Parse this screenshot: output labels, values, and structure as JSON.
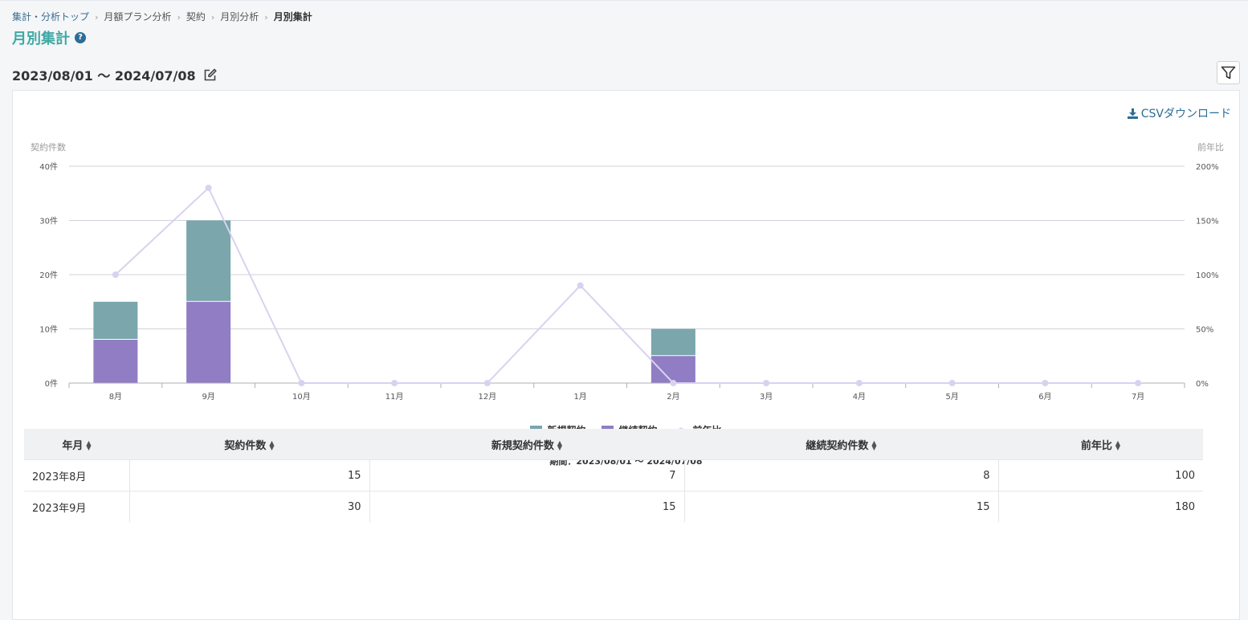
{
  "breadcrumb": {
    "items": [
      "集計・分析トップ",
      "月額プラン分析",
      "契約",
      "月別分析"
    ],
    "current": "月別集計"
  },
  "page_title": "月別集計",
  "help_icon_glyph": "?",
  "date_range": "2023/08/01 〜 2024/07/08",
  "csv_label": "CSVダウンロード",
  "colors": {
    "new_contract": "#7aa6ac",
    "renewal_contract": "#917dc4",
    "yoy_line": "#d8d2f0",
    "title_accent": "#3fa9a4",
    "link": "#2c6d96"
  },
  "chart_data": {
    "type": "bar",
    "stacked": true,
    "categories": [
      "8月",
      "9月",
      "10月",
      "11月",
      "12月",
      "1月",
      "2月",
      "3月",
      "4月",
      "5月",
      "6月",
      "7月"
    ],
    "series": [
      {
        "name": "継続契約",
        "values": [
          8,
          15,
          0,
          0,
          0,
          0,
          5,
          0,
          0,
          0,
          0,
          0
        ]
      },
      {
        "name": "新規契約",
        "values": [
          7,
          15,
          0,
          0,
          0,
          0,
          5,
          0,
          0,
          0,
          0,
          0
        ]
      }
    ],
    "line_series": {
      "name": "前年比",
      "type": "line",
      "axis": "right",
      "values": [
        100,
        180,
        0,
        0,
        0,
        90,
        0,
        0,
        0,
        0,
        0,
        0
      ]
    },
    "ylabel_left": "契約件数",
    "ylabel_right": "前年比",
    "ylim_left": [
      0,
      40
    ],
    "ylim_right": [
      0,
      200
    ],
    "yticks_left": [
      "0件",
      "10件",
      "20件",
      "30件",
      "40件"
    ],
    "yticks_right": [
      "0%",
      "50%",
      "100%",
      "150%",
      "200%"
    ],
    "grid": true,
    "legend": [
      "新規契約",
      "継続契約",
      "前年比"
    ],
    "legend_position": "bottom",
    "caption": "期間：2023/08/01 〜 2024/07/08"
  },
  "table": {
    "headers": [
      "年月",
      "契約件数",
      "新規契約件数",
      "継続契約件数",
      "前年比"
    ],
    "rows": [
      [
        "2023年8月",
        "15",
        "7",
        "8",
        "100"
      ],
      [
        "2023年9月",
        "30",
        "15",
        "15",
        "180"
      ]
    ]
  }
}
